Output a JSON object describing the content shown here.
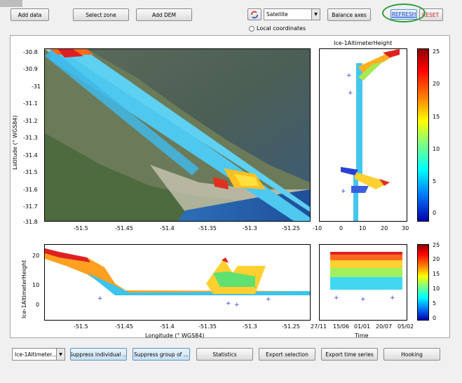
{
  "toolbar": {
    "add_data": "Add data",
    "select_zone": "Select zone",
    "add_dem": "Add DEM",
    "basemap": "Satellite",
    "balance_axes": "Balance axes",
    "refresh": "REFRESH",
    "reset": "RESET",
    "local_coordinates": "Local coordinates"
  },
  "map": {
    "ylabel": "Latitude (° WGS84)",
    "yticks": [
      "-30.8",
      "-30.9",
      "-31",
      "-31.1",
      "-31.2",
      "-31.3",
      "-31.4",
      "-31.5",
      "-31.6",
      "-31.7",
      "-31.8"
    ],
    "xticks": [
      "-51.5",
      "-51.45",
      "-51.4",
      "-51.35",
      "-51.3",
      "-51.25"
    ]
  },
  "side_plot": {
    "title": "Ice-1AltimeterHeight",
    "xticks": [
      "-10",
      "0",
      "10",
      "20",
      "30"
    ]
  },
  "colorbar_top": {
    "ticks": [
      "25",
      "20",
      "15",
      "10",
      "5",
      "0"
    ],
    "range": [
      -2,
      25
    ]
  },
  "colorbar_bottom": {
    "ticks": [
      "25",
      "20",
      "15",
      "10",
      "5",
      "0"
    ],
    "range": [
      -2,
      25
    ]
  },
  "profile_plot": {
    "ylabel": "Ice-1AltimeterHeight",
    "xlabel": "Longitude (° WGS84)",
    "yticks": [
      "20",
      "10",
      "0"
    ],
    "xticks": [
      "-51.5",
      "-51.45",
      "-51.4",
      "-51.35",
      "-51.3",
      "-51.25"
    ]
  },
  "time_plot": {
    "xlabel": "Time",
    "xticks": [
      "27/11",
      "15/06",
      "01/01",
      "20/07",
      "05/02"
    ]
  },
  "bottom_bar": {
    "variable": "Ice-1Altimeter...",
    "suppress_individual": "Suppress individual ...",
    "suppress_group": "Suppress group of ...",
    "statistics": "Statistics",
    "export_selection": "Export selection",
    "export_time_series": "Export time series",
    "hooking": "Hooking"
  },
  "colors": {
    "highlight_ring": "#2e9e3a",
    "reset_text": "#d42020",
    "refresh_text": "#1a3fcc"
  }
}
